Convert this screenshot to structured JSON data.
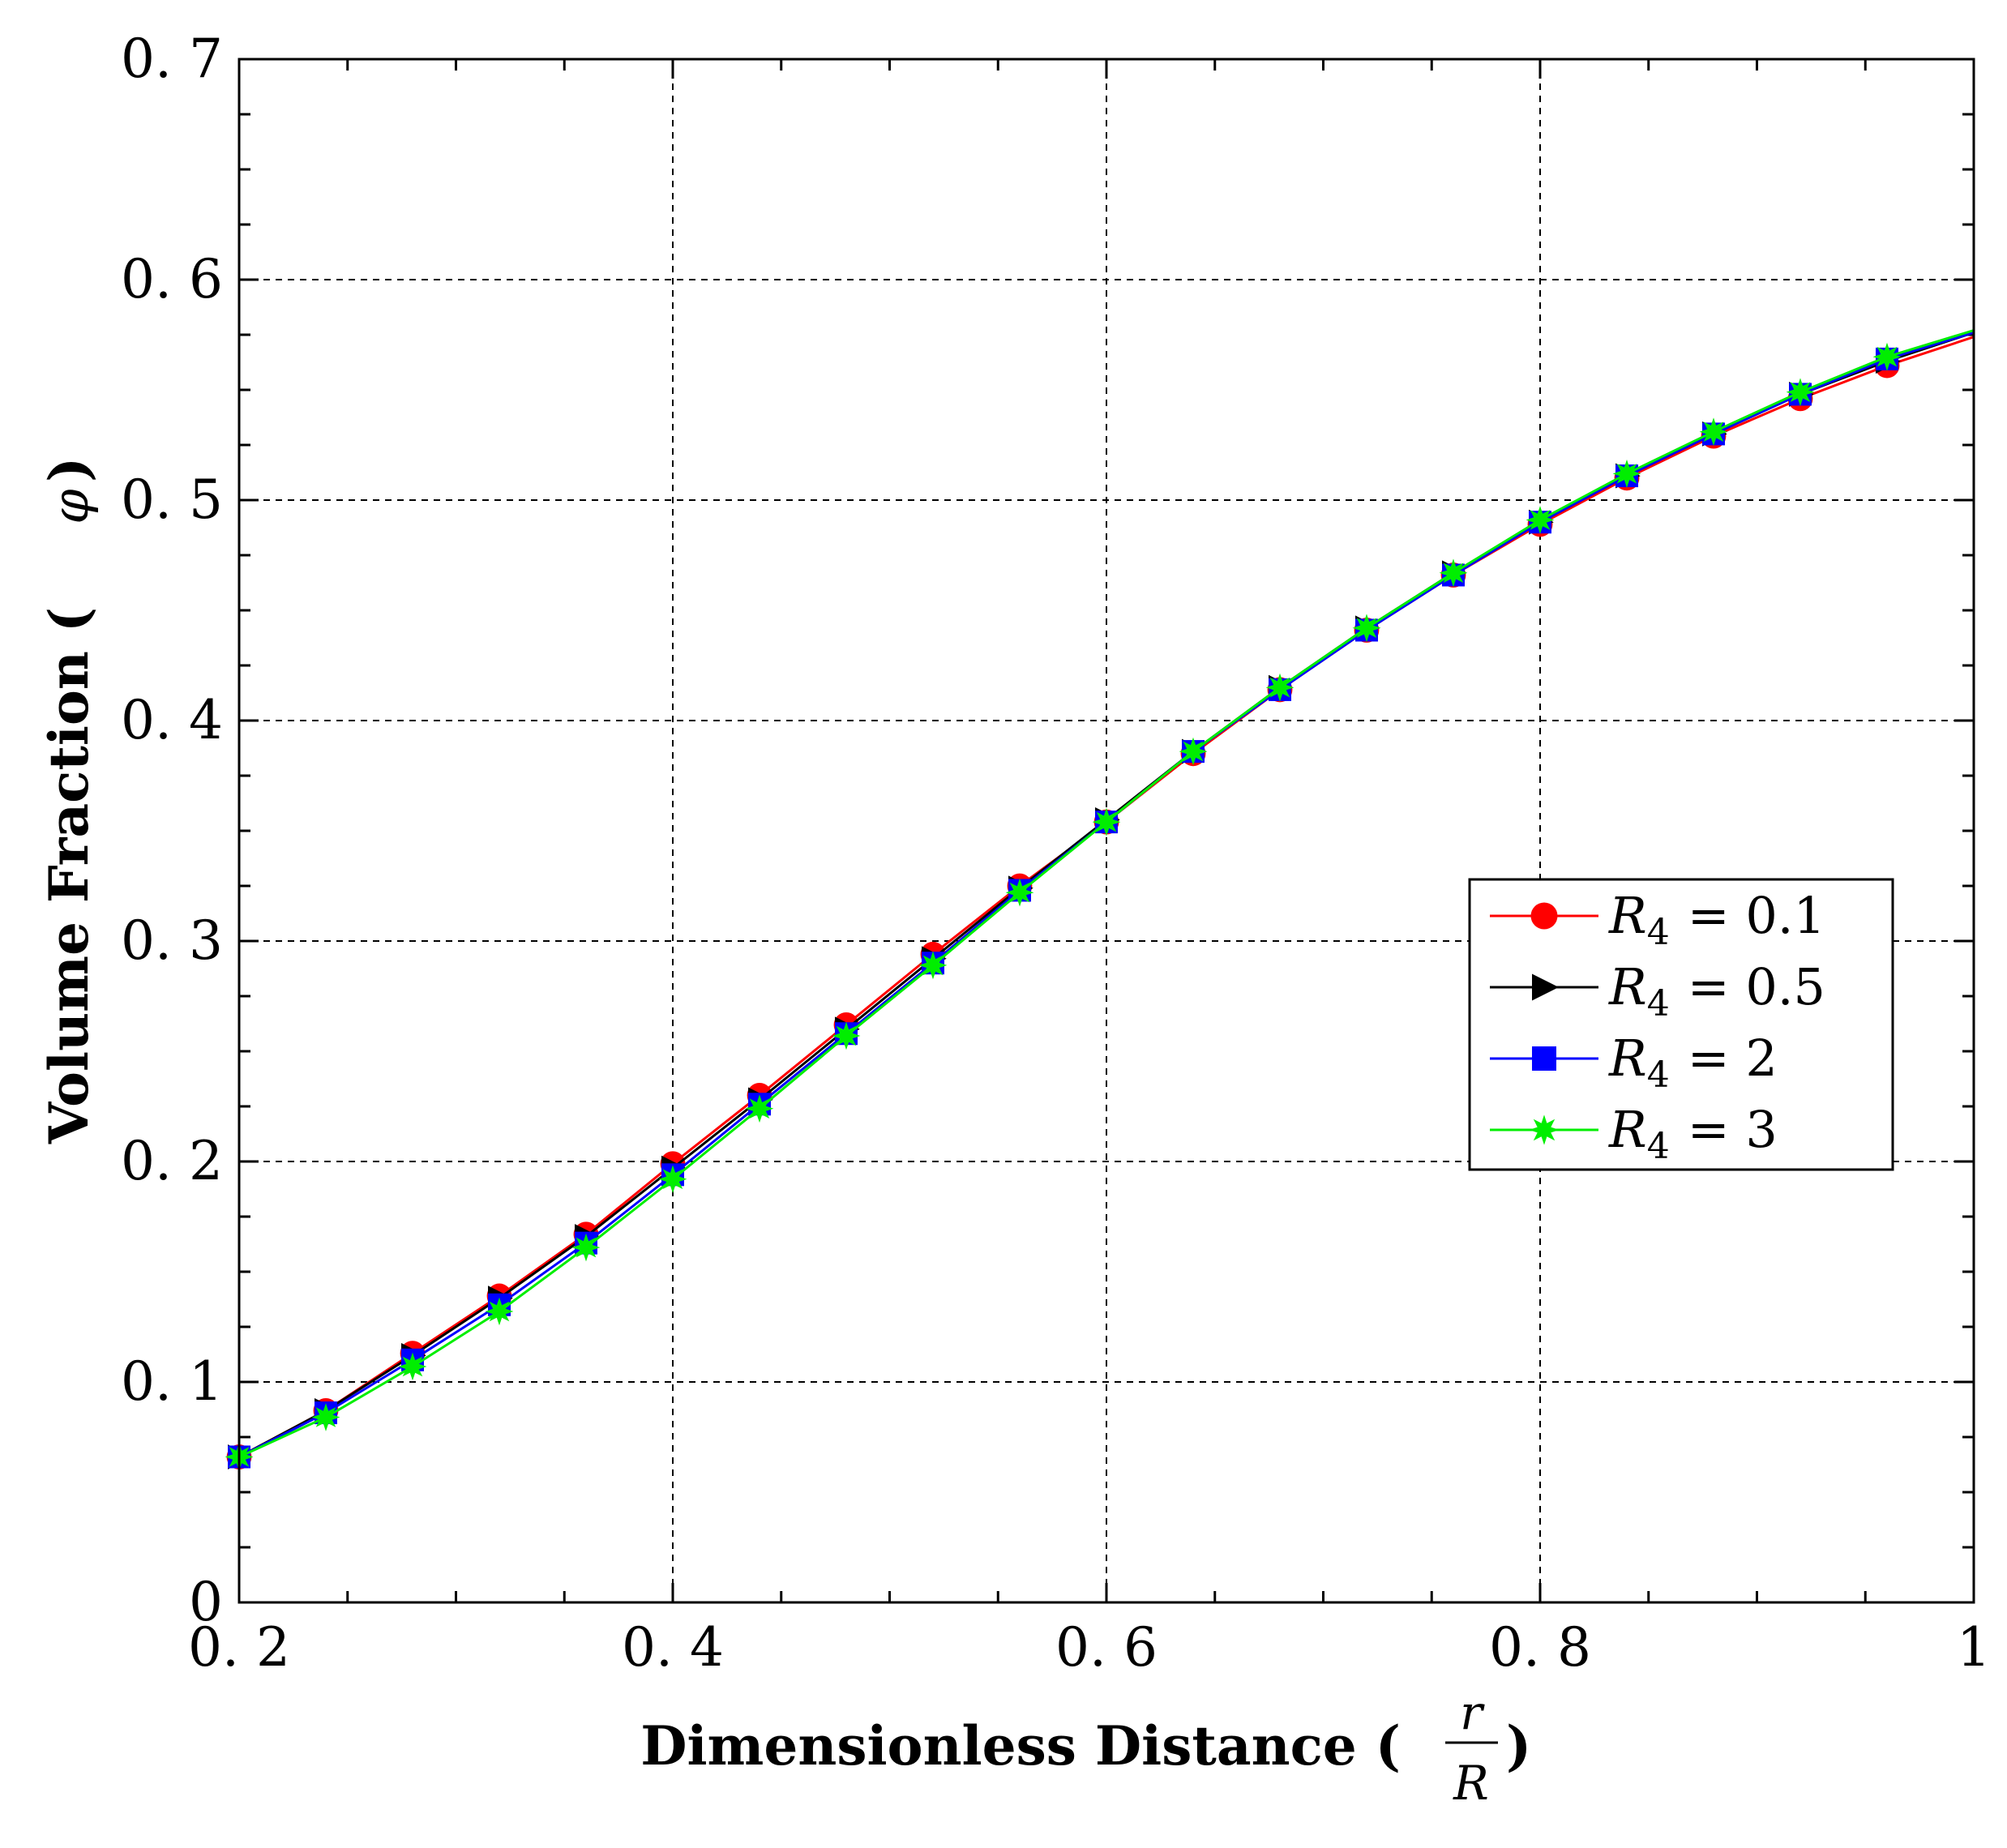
{
  "chart_data": {
    "type": "line",
    "xlabel": "Dimensionless Distance (",
    "xlabel_frac_num": "r",
    "xlabel_frac_den": "R",
    "xlabel_close": ")",
    "ylabel": "Volume Fraction (",
    "ylabel_symbol": "φ",
    "ylabel_close": ")",
    "xlim": [
      0.2,
      1.0
    ],
    "ylim": [
      0,
      0.7
    ],
    "x_ticks": [
      0.2,
      0.4,
      0.6,
      0.8,
      1.0
    ],
    "x_tick_labels": [
      "0. 2",
      "0. 4",
      "0. 6",
      "0. 8",
      "1"
    ],
    "y_ticks": [
      0,
      0.1,
      0.2,
      0.3,
      0.4,
      0.5,
      0.6,
      0.7
    ],
    "y_tick_labels": [
      "0",
      "0. 1",
      "0. 2",
      "0. 3",
      "0. 4",
      "0. 5",
      "0. 6",
      "0. 7"
    ],
    "grid": true,
    "legend_position": "right-center",
    "legend_prefix": "R",
    "legend_subscript": "4",
    "x": [
      0.2,
      0.24,
      0.28,
      0.32,
      0.36,
      0.4,
      0.44,
      0.48,
      0.52,
      0.56,
      0.6,
      0.64,
      0.68,
      0.72,
      0.76,
      0.8,
      0.84,
      0.88,
      0.92,
      0.96,
      1.0
    ],
    "series": [
      {
        "name": "= 0.1",
        "color": "#ff0000",
        "marker": "circle",
        "values": [
          0.066,
          0.087,
          0.113,
          0.139,
          0.167,
          0.199,
          0.23,
          0.262,
          0.294,
          0.325,
          0.354,
          0.385,
          0.414,
          0.441,
          0.466,
          0.489,
          0.51,
          0.529,
          0.546,
          0.561,
          0.574
        ]
      },
      {
        "name": "= 0.5",
        "color": "#000000",
        "marker": "triangle-right",
        "values": [
          0.066,
          0.087,
          0.112,
          0.138,
          0.166,
          0.197,
          0.228,
          0.26,
          0.292,
          0.324,
          0.355,
          0.386,
          0.415,
          0.442,
          0.467,
          0.49,
          0.511,
          0.53,
          0.548,
          0.563,
          0.576
        ]
      },
      {
        "name": "= 2",
        "color": "#0000ff",
        "marker": "square",
        "values": [
          0.066,
          0.086,
          0.11,
          0.135,
          0.163,
          0.194,
          0.226,
          0.258,
          0.29,
          0.323,
          0.354,
          0.386,
          0.414,
          0.441,
          0.466,
          0.49,
          0.511,
          0.53,
          0.548,
          0.564,
          0.576
        ]
      },
      {
        "name": "= 3",
        "color": "#00ee00",
        "marker": "star",
        "values": [
          0.066,
          0.084,
          0.107,
          0.132,
          0.161,
          0.192,
          0.224,
          0.257,
          0.289,
          0.322,
          0.354,
          0.386,
          0.415,
          0.442,
          0.467,
          0.491,
          0.512,
          0.531,
          0.549,
          0.565,
          0.577
        ]
      }
    ]
  }
}
